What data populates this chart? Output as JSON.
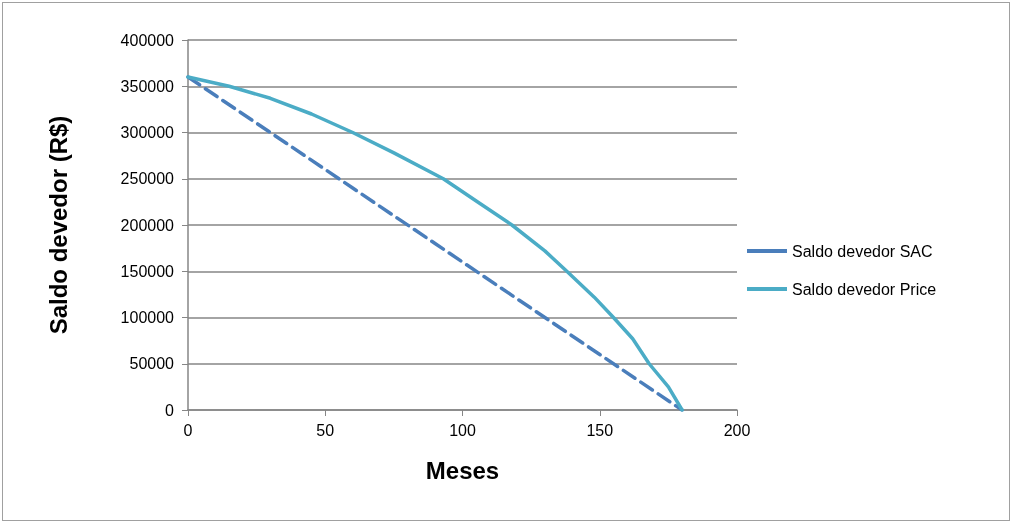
{
  "chart_data": {
    "type": "line",
    "xlabel": "Meses",
    "ylabel": "Saldo devedor (R$)",
    "xlim": [
      0,
      200
    ],
    "xticks": [
      0,
      50,
      100,
      150,
      200
    ],
    "ylim": [
      0,
      400000
    ],
    "yticks": [
      0,
      50000,
      100000,
      150000,
      200000,
      250000,
      300000,
      350000,
      400000
    ],
    "grid": "y",
    "legend": "right",
    "marker": "none",
    "series": [
      {
        "name": "Saldo devedor SAC",
        "color": "#4a7ebb",
        "line_style": "dashed",
        "x": [
          0,
          30,
          60,
          90,
          120,
          150,
          180
        ],
        "values": [
          360000,
          300000,
          240000,
          180000,
          120000,
          60000,
          0
        ]
      },
      {
        "name": "Saldo devedor Price",
        "color": "#4bacc6",
        "line_style": "solid",
        "x": [
          0,
          15,
          30,
          45,
          60,
          75,
          93,
          105,
          118,
          130,
          138,
          148,
          155,
          162,
          168,
          175,
          180
        ],
        "values": [
          360000,
          350000,
          337000,
          320000,
          300000,
          278000,
          250000,
          226000,
          200000,
          172000,
          150000,
          122000,
          100000,
          77000,
          50000,
          25000,
          0
        ]
      }
    ]
  }
}
